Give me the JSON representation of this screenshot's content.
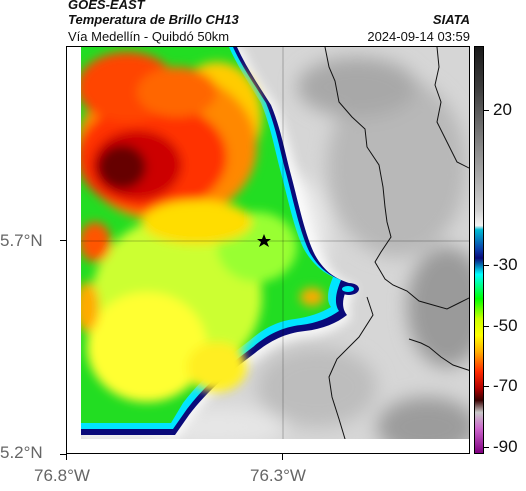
{
  "header": {
    "title": "GOES-EAST",
    "subtitle": "Temperatura de Brillo CH13",
    "organization": "SIATA",
    "route": "Vía Medellín - Quibdó 50km",
    "timestamp": "2024-09-14 03:59"
  },
  "axes": {
    "lat_labels": [
      "5.7°N",
      "5.2°N"
    ],
    "lon_labels": [
      "76.8°W",
      "76.3°W"
    ]
  },
  "colorbar": {
    "ticks": [
      "20",
      "-30",
      "-50",
      "-70",
      "-90"
    ],
    "colors": {
      "coldest": "#800080",
      "very_cold": "#3a0000",
      "cold": "#ff2a00",
      "mid": "#ffff00",
      "cool": "#00ff00",
      "edge": "#0a0a7a",
      "warm": "#d9d9d9"
    }
  },
  "map": {
    "marker": "star-icon"
  }
}
